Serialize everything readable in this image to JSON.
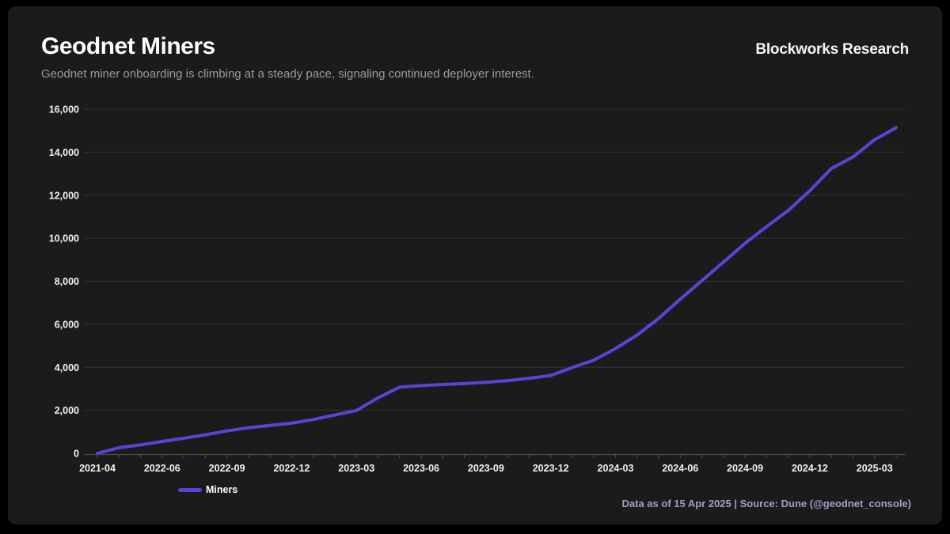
{
  "header": {
    "title": "Geodnet Miners",
    "subtitle": "Geodnet miner onboarding is climbing at a steady pace, signaling continued deployer interest.",
    "brand": "Blockworks Research"
  },
  "legend": {
    "label": "Miners"
  },
  "footer": {
    "note": "Data as of 15 Apr 2025 | Source: Dune (@geodnet_console)"
  },
  "colors": {
    "background": "#000000",
    "card": "#1b1b1c",
    "line": "#5b43d6",
    "grid": "#343434",
    "axis": "#4a4a4a",
    "tick_label": "#f2f2f2",
    "subtitle_text": "#9b9b9b",
    "footer_text": "#a49ec4"
  },
  "chart_data": {
    "type": "line",
    "title": "Geodnet Miners",
    "xlabel": "",
    "ylabel": "",
    "ylim": [
      0,
      16000
    ],
    "y_ticks": [
      0,
      2000,
      4000,
      6000,
      8000,
      10000,
      12000,
      14000,
      16000
    ],
    "grid": "horizontal",
    "legend_position": "bottom-left",
    "x_tick_labels": [
      "2021-04",
      "2022-06",
      "2022-09",
      "2022-12",
      "2023-03",
      "2023-06",
      "2023-09",
      "2023-12",
      "2024-03",
      "2024-06",
      "2024-09",
      "2024-12",
      "2025-03"
    ],
    "series": [
      {
        "name": "Miners",
        "color": "#5b43d6",
        "points": [
          [
            "2021-04",
            0
          ],
          [
            "2022-04",
            260
          ],
          [
            "2022-05",
            390
          ],
          [
            "2022-06",
            550
          ],
          [
            "2022-07",
            700
          ],
          [
            "2022-08",
            860
          ],
          [
            "2022-09",
            1040
          ],
          [
            "2022-10",
            1190
          ],
          [
            "2022-11",
            1300
          ],
          [
            "2022-12",
            1400
          ],
          [
            "2023-01",
            1570
          ],
          [
            "2023-02",
            1780
          ],
          [
            "2023-03",
            1990
          ],
          [
            "2023-04",
            2580
          ],
          [
            "2023-05",
            3080
          ],
          [
            "2023-06",
            3150
          ],
          [
            "2023-07",
            3200
          ],
          [
            "2023-08",
            3240
          ],
          [
            "2023-09",
            3300
          ],
          [
            "2023-10",
            3380
          ],
          [
            "2023-11",
            3490
          ],
          [
            "2023-12",
            3620
          ],
          [
            "2024-01",
            3990
          ],
          [
            "2024-02",
            4330
          ],
          [
            "2024-03",
            4870
          ],
          [
            "2024-04",
            5500
          ],
          [
            "2024-05",
            6270
          ],
          [
            "2024-06",
            7170
          ],
          [
            "2024-07",
            8030
          ],
          [
            "2024-08",
            8890
          ],
          [
            "2024-09",
            9760
          ],
          [
            "2024-10",
            10540
          ],
          [
            "2024-11",
            11290
          ],
          [
            "2024-12",
            12210
          ],
          [
            "2025-01",
            13240
          ],
          [
            "2025-02",
            13780
          ],
          [
            "2025-03",
            14580
          ],
          [
            "2025-04",
            15140
          ]
        ]
      }
    ]
  }
}
